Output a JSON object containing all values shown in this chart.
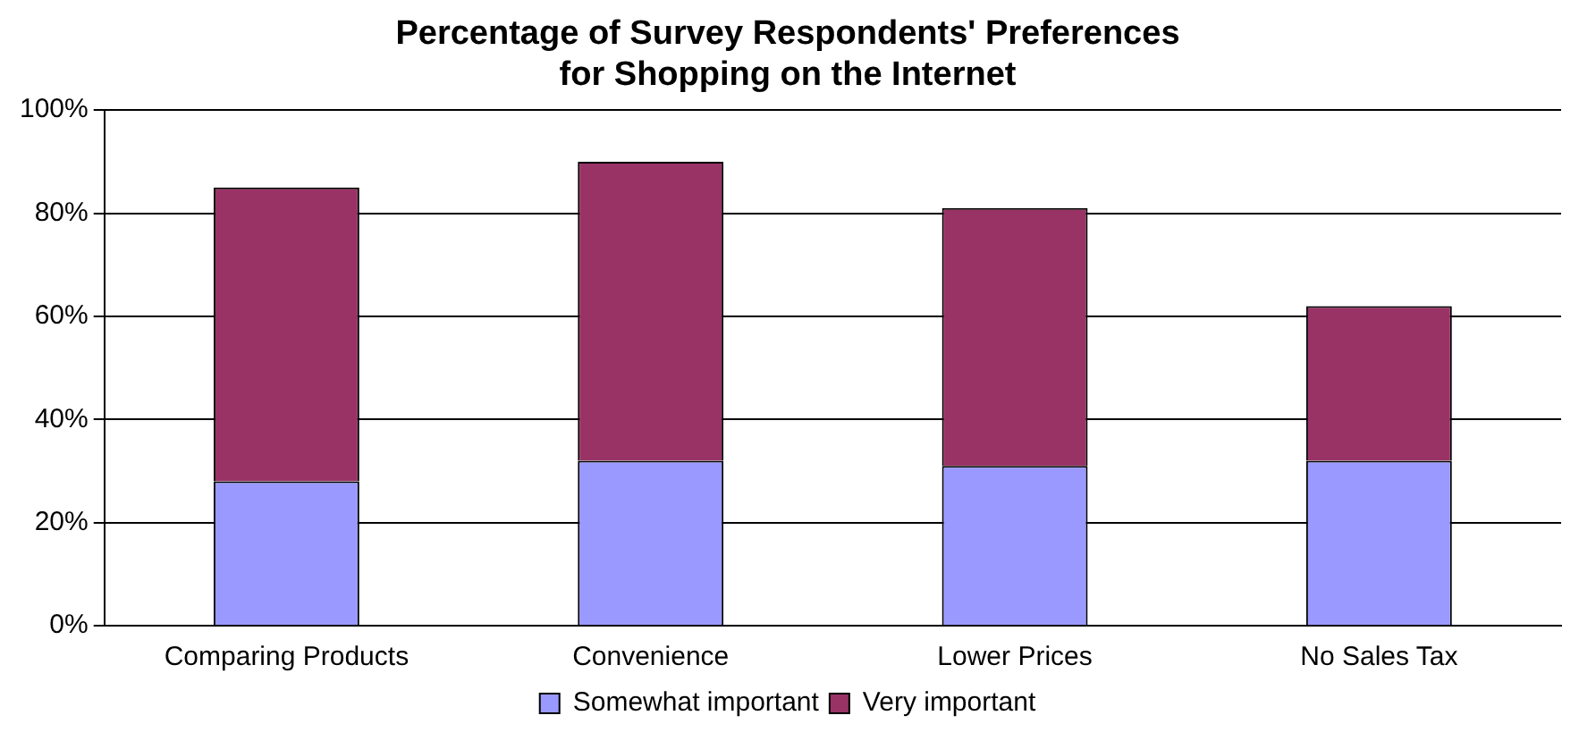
{
  "chart_data": {
    "type": "bar",
    "title": "Percentage of Survey Respondents' Preferences\nfor Shopping on the Internet",
    "categories": [
      "Comparing Products",
      "Convenience",
      "Lower Prices",
      "No Sales Tax"
    ],
    "stacked": true,
    "series": [
      {
        "name": "Somewhat important",
        "color": "#9999ff",
        "values": [
          28,
          32,
          31,
          32
        ]
      },
      {
        "name": "Very important",
        "color": "#993366",
        "values": [
          57,
          58,
          50,
          30
        ]
      }
    ],
    "ylim": [
      0,
      100
    ],
    "yticks": [
      {
        "value": 0,
        "label": "0%"
      },
      {
        "value": 20,
        "label": "20%"
      },
      {
        "value": 40,
        "label": "40%"
      },
      {
        "value": 60,
        "label": "60%"
      },
      {
        "value": 80,
        "label": "80%"
      },
      {
        "value": 100,
        "label": "100%"
      }
    ],
    "grid": "y",
    "legend": "bottom"
  }
}
